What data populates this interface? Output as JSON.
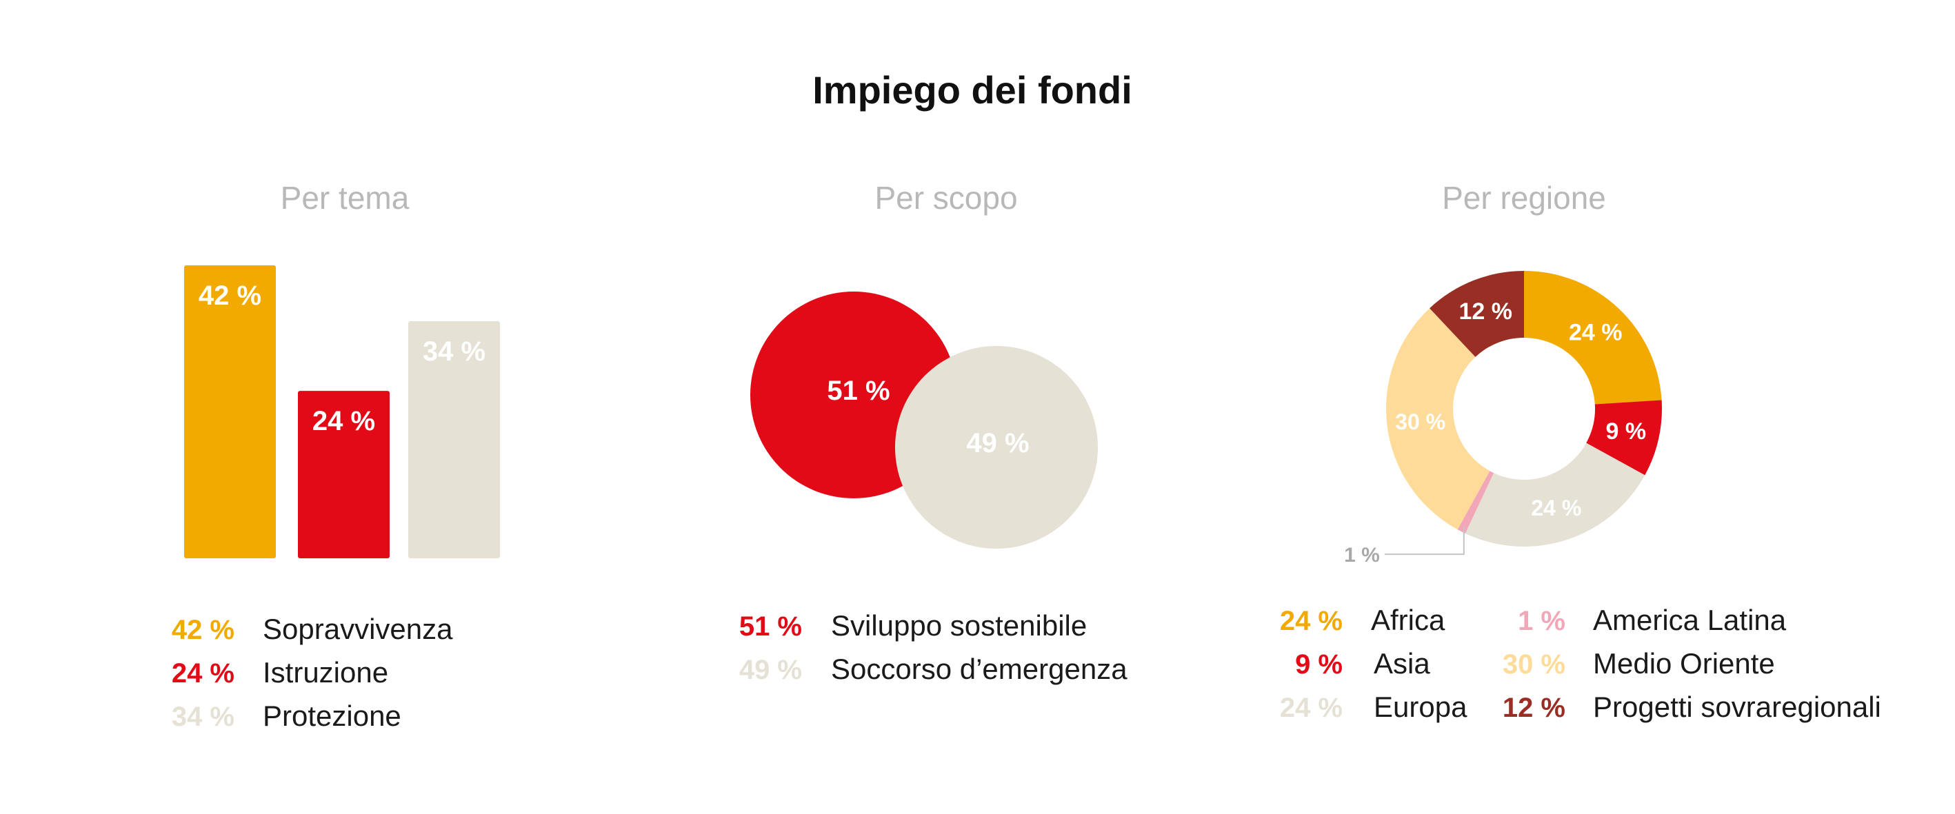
{
  "title": "Impiego dei fondi",
  "colors": {
    "africa": "#F2A900",
    "asia": "#E20A17",
    "europa": "#E6E1D5",
    "america_latina": "#F2A7B8",
    "medio_oriente": "#FFDB99",
    "progetti": "#992E25",
    "subtitle": "#B8B8B8"
  },
  "chart_data": [
    {
      "type": "bar",
      "title": "Per tema",
      "categories": [
        "Sopravvivenza",
        "Istruzione",
        "Protezione"
      ],
      "values": [
        42,
        24,
        34
      ],
      "value_labels": [
        "42 %",
        "24 %",
        "34 %"
      ],
      "colors": [
        "#F2A900",
        "#E20A17",
        "#E6E1D5"
      ],
      "legend": [
        {
          "pct": "42 %",
          "label": "Sopravvivenza",
          "color": "#F2A900"
        },
        {
          "pct": "24 %",
          "label": "Istruzione",
          "color": "#E20A17"
        },
        {
          "pct": "34 %",
          "label": "Protezione",
          "color": "#E6E1D5"
        }
      ]
    },
    {
      "type": "pie",
      "title": "Per scopo",
      "categories": [
        "Sviluppo sostenibile",
        "Soccorso d’emergenza"
      ],
      "values": [
        51,
        49
      ],
      "value_labels": [
        "51 %",
        "49 %"
      ],
      "colors": [
        "#E20A17",
        "#E6E1D5"
      ],
      "legend": [
        {
          "pct": "51 %",
          "label": "Sviluppo sostenibile",
          "color": "#E20A17"
        },
        {
          "pct": "49 %",
          "label": "Soccorso d’emergenza",
          "color": "#E6E1D5"
        }
      ]
    },
    {
      "type": "pie",
      "title": "Per regione",
      "categories": [
        "Africa",
        "Asia",
        "Europa",
        "America Latina",
        "Medio Oriente",
        "Progetti sovraregionali"
      ],
      "values": [
        24,
        9,
        24,
        1,
        30,
        12
      ],
      "value_labels": [
        "24 %",
        "9 %",
        "24 %",
        "1 %",
        "30 %",
        "12 %"
      ],
      "colors": [
        "#F2A900",
        "#E20A17",
        "#E6E1D5",
        "#F2A7B8",
        "#FFDB99",
        "#992E25"
      ],
      "legend": [
        {
          "pct": "24 %",
          "label": "Africa",
          "color": "#F2A900"
        },
        {
          "pct": "9 %",
          "label": "Asia",
          "color": "#E20A17"
        },
        {
          "pct": "24 %",
          "label": "Europa",
          "color": "#E6E1D5"
        },
        {
          "pct": "1 %",
          "label": "America Latina",
          "color": "#F2A7B8"
        },
        {
          "pct": "30 %",
          "label": "Medio Oriente",
          "color": "#FFDB99"
        },
        {
          "pct": "12 %",
          "label": "Progetti sovraregionali",
          "color": "#992E25"
        }
      ]
    }
  ]
}
